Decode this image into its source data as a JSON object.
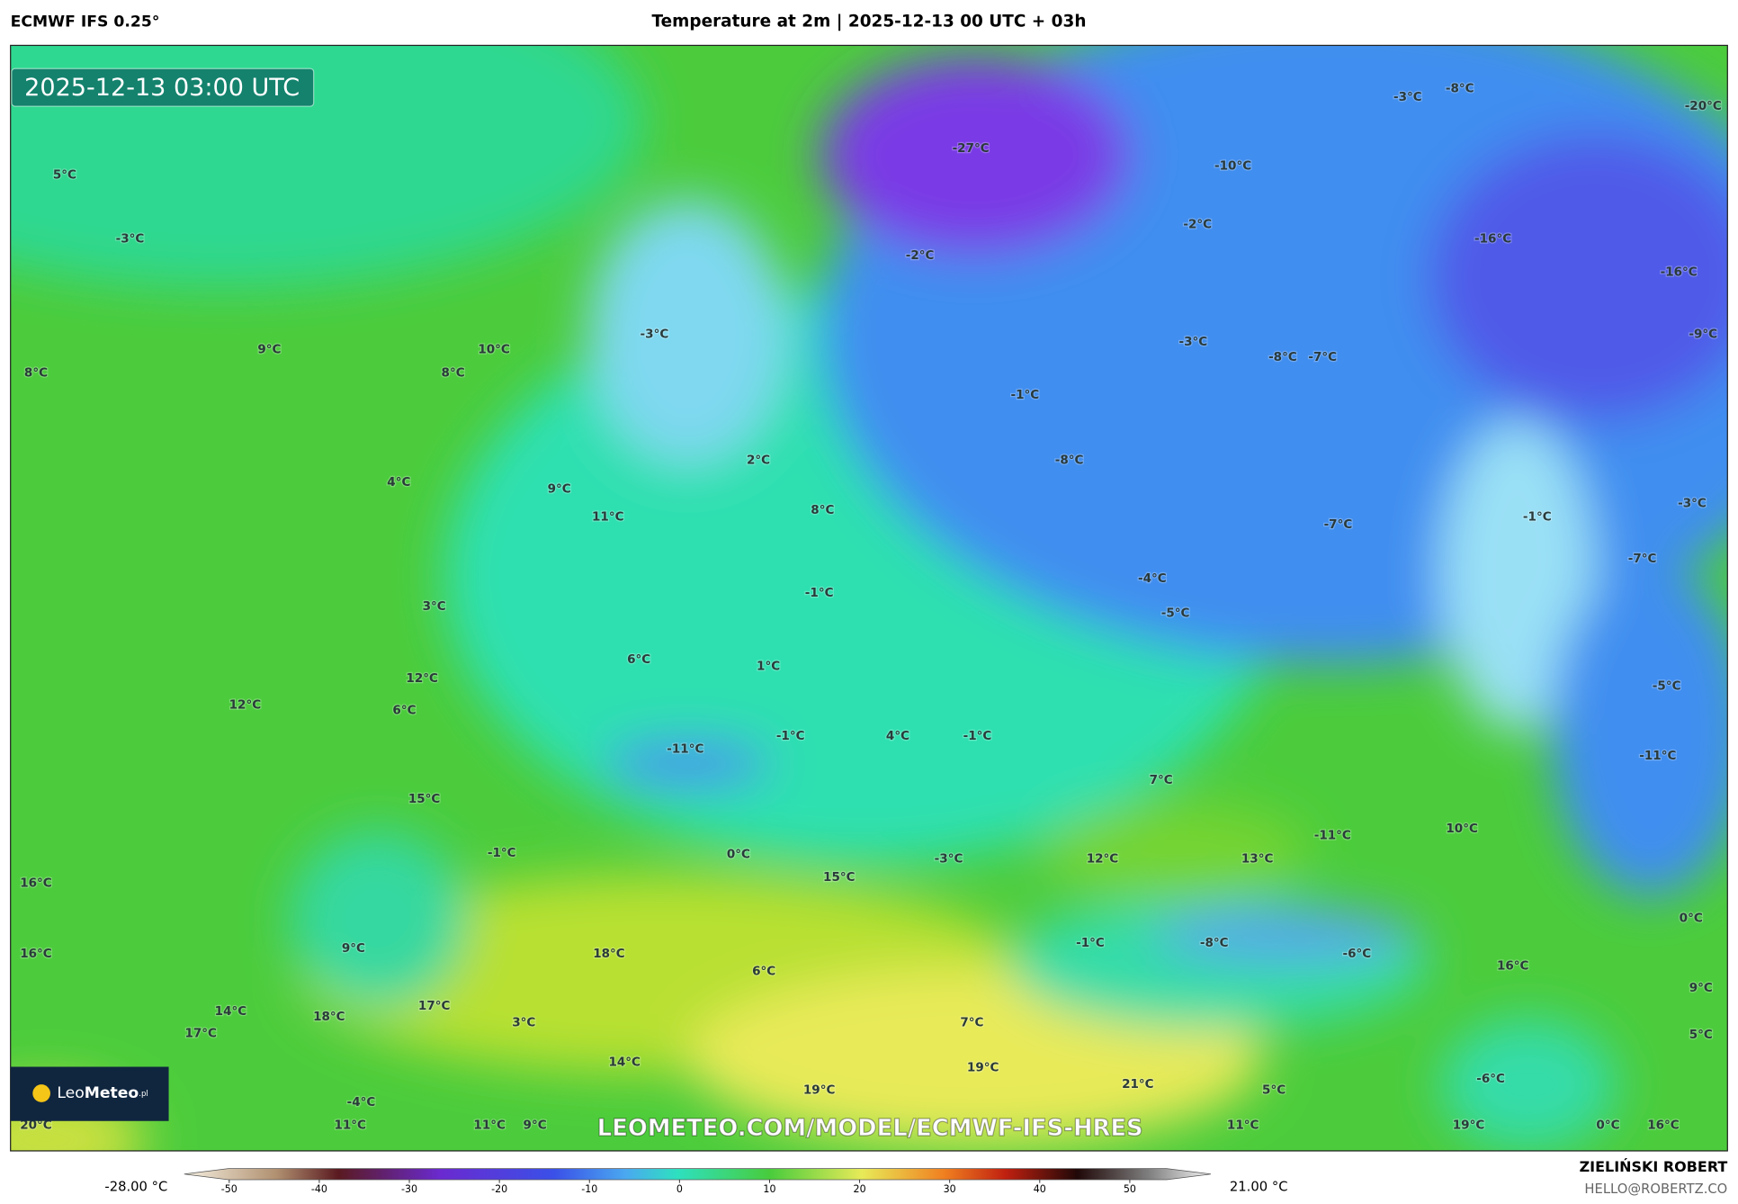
{
  "header": {
    "left": "ECMWF IFS 0.25°",
    "title": "Temperature at 2m | 2025-12-13 00 UTC + 03h"
  },
  "map": {
    "timestamp": "2025-12-13 03:00 UTC",
    "watermark": "LEOMETEO.COM/MODEL/ECMWF-IFS-HRES",
    "logo_a": "Leo",
    "logo_b": "Meteo",
    "logo_suffix": ".pl",
    "labels": [
      "5°C",
      "-3°C",
      "9°C",
      "10°C",
      "8°C",
      "8°C",
      "-3°C",
      "-27°C",
      "-10°C",
      "-3°C",
      "-8°C",
      "-20°C",
      "-2°C",
      "-2°C",
      "-16°C",
      "-16°C",
      "-9°C",
      "-3°C",
      "-8°C",
      "-7°C",
      "-1°C",
      "4°C",
      "9°C",
      "2°C",
      "-8°C",
      "11°C",
      "8°C",
      "-7°C",
      "-1°C",
      "-3°C",
      "-7°C",
      "-4°C",
      "-1°C",
      "3°C",
      "-5°C",
      "6°C",
      "1°C",
      "12°C",
      "12°C",
      "6°C",
      "-5°C",
      "-1°C",
      "4°C",
      "-1°C",
      "-11°C",
      "-11°C",
      "7°C",
      "15°C",
      "-1°C",
      "0°C",
      "12°C",
      "13°C",
      "-11°C",
      "10°C",
      "-3°C",
      "15°C",
      "16°C",
      "0°C",
      "-1°C",
      "-8°C",
      "-6°C",
      "16°C",
      "9°C",
      "18°C",
      "6°C",
      "16°C",
      "9°C",
      "14°C",
      "18°C",
      "17°C",
      "3°C",
      "7°C",
      "17°C",
      "5°C",
      "19°C",
      "14°C",
      "-6°C",
      "21°C",
      "19°C",
      "5°C",
      "-4°C",
      "20°C",
      "11°C",
      "11°C",
      "9°C",
      "11°C",
      "19°C",
      "0°C",
      "16°C"
    ]
  },
  "colorbar": {
    "lim": [
      -55,
      59
    ],
    "ticks": [
      -50,
      -40,
      -30,
      -20,
      -10,
      0,
      10,
      20,
      30,
      40,
      50
    ],
    "min_label": "-28.00 °C",
    "max_label": "21.00 °C"
  },
  "footer": {
    "author": "ZIELIŃSKI ROBERT",
    "email": "HELLO@ROBERTZ.CO"
  }
}
